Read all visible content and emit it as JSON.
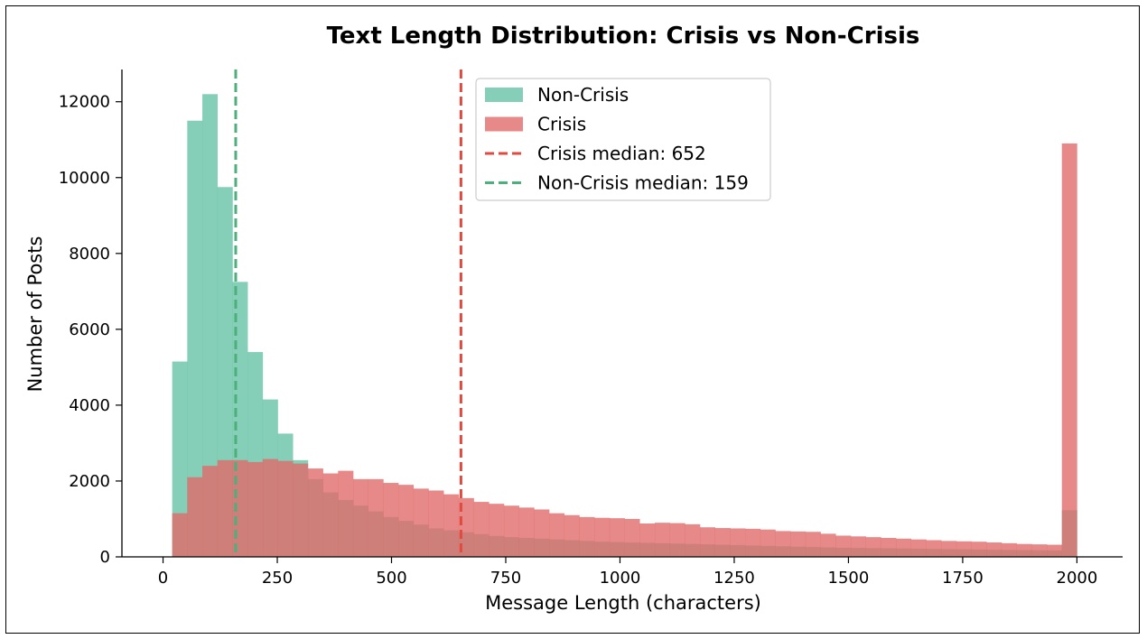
{
  "chart_data": {
    "type": "histogram",
    "title": "Text Length Distribution: Crisis vs Non-Crisis",
    "xlabel": "Message Length (characters)",
    "ylabel": "Number of Posts",
    "xlim": [
      -90,
      2100
    ],
    "ylim": [
      0,
      12850
    ],
    "x_ticks": [
      0,
      250,
      500,
      750,
      1000,
      1250,
      1500,
      1750,
      2000
    ],
    "y_ticks": [
      0,
      2000,
      4000,
      6000,
      8000,
      10000,
      12000
    ],
    "bin_start": 20,
    "bin_width": 33,
    "grid": false,
    "legend_position": "upper-center",
    "series": [
      {
        "name": "Non-Crisis",
        "color": "#66c2a5",
        "values": [
          5150,
          11500,
          12200,
          9750,
          7250,
          5400,
          4150,
          3250,
          2550,
          2050,
          1700,
          1500,
          1350,
          1200,
          1050,
          950,
          850,
          750,
          700,
          650,
          600,
          550,
          520,
          500,
          480,
          460,
          440,
          420,
          400,
          390,
          380,
          370,
          360,
          350,
          340,
          330,
          320,
          310,
          300,
          290,
          280,
          270,
          260,
          250,
          240,
          235,
          230,
          225,
          220,
          215,
          210,
          205,
          200,
          195,
          190,
          185,
          180,
          175,
          170,
          1230
        ]
      },
      {
        "name": "Crisis",
        "color": "#e06c6a",
        "values": [
          1150,
          2100,
          2400,
          2550,
          2550,
          2500,
          2580,
          2530,
          2460,
          2330,
          2200,
          2270,
          2050,
          2050,
          1950,
          1900,
          1800,
          1750,
          1650,
          1550,
          1450,
          1400,
          1350,
          1300,
          1250,
          1150,
          1100,
          1050,
          1030,
          1020,
          1000,
          880,
          900,
          890,
          860,
          780,
          760,
          750,
          740,
          720,
          680,
          670,
          660,
          610,
          560,
          540,
          520,
          500,
          480,
          460,
          440,
          420,
          410,
          400,
          380,
          360,
          340,
          330,
          320,
          10900
        ]
      }
    ],
    "median_lines": [
      {
        "label": "Crisis median: 652",
        "x": 652,
        "color": "#e04a3f"
      },
      {
        "label": "Non-Crisis median: 159",
        "x": 159,
        "color": "#4cb07a"
      }
    ]
  }
}
